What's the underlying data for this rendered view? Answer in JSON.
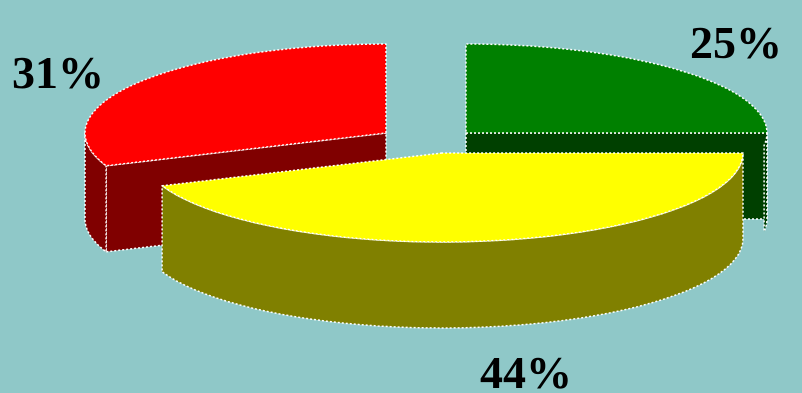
{
  "background_color": "#8fc8c8",
  "chart_data": {
    "type": "pie",
    "title": "",
    "exploded": true,
    "three_d": true,
    "slices": [
      {
        "label": "25%",
        "value": 25,
        "top_color": "#008000",
        "side_color": "#004000"
      },
      {
        "label": "44%",
        "value": 44,
        "top_color": "#ffff00",
        "side_color": "#808000"
      },
      {
        "label": "31%",
        "value": 31,
        "top_color": "#ff0000",
        "side_color": "#800000"
      }
    ]
  }
}
